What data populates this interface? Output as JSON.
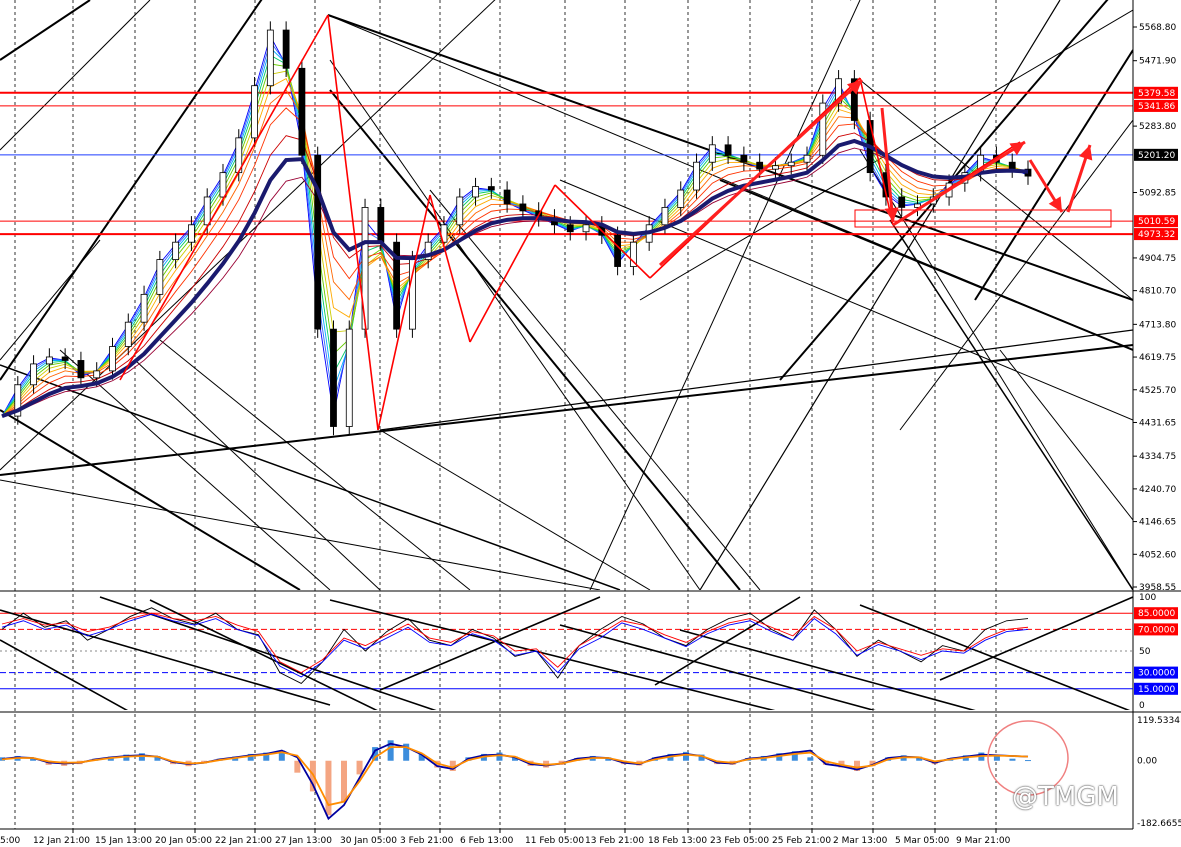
{
  "watermark": "@TMGM",
  "chart_data": [
    {
      "type": "line",
      "pane": "price",
      "y_ticks": [
        "5568.80",
        "5471.90",
        "5283.80",
        "5092.85",
        "4904.75",
        "4810.70",
        "4713.80",
        "4619.75",
        "4525.70",
        "4431.65",
        "4334.75",
        "4240.70",
        "4146.65",
        "4052.60",
        "3958.55"
      ],
      "ylim": [
        3958.55,
        5568.8
      ],
      "price_tags": [
        {
          "label": "5379.58",
          "value": 5379.58,
          "color": "#ff0000"
        },
        {
          "label": "5341.86",
          "value": 5341.86,
          "color": "#ff0000"
        },
        {
          "label": "5201.20",
          "value": 5201.2,
          "color": "#000000"
        },
        {
          "label": "5010.59",
          "value": 5010.59,
          "color": "#ff0000"
        },
        {
          "label": "4973.32",
          "value": 4973.32,
          "color": "#ff0000"
        }
      ],
      "x_labels": [
        "12 Jan 21:00",
        "15 Jan 13:00",
        "20 Jan 05:00",
        "22 Jan 21:00",
        "27 Jan 13:00",
        "30 Jan 05:00",
        "3 Feb 21:00",
        "6 Feb 13:00",
        "11 Feb 05:00",
        "13 Feb 21:00",
        "18 Feb 13:00",
        "23 Feb 05:00",
        "25 Feb 21:00",
        "2 Mar 13:00",
        "5 Mar 05:00",
        "9 Mar 21:00"
      ],
      "x_first_partial": "5:00",
      "close_series": [
        4450,
        4540,
        4600,
        4620,
        4610,
        4560,
        4580,
        4650,
        4720,
        4800,
        4900,
        4950,
        5000,
        5080,
        5150,
        5250,
        5400,
        5560,
        5450,
        5200,
        4700,
        4420,
        4700,
        5050,
        4950,
        4700,
        4900,
        4950,
        5000,
        5080,
        5110,
        5100,
        5060,
        5040,
        5020,
        5000,
        4980,
        5000,
        4970,
        4880,
        4950,
        5000,
        5050,
        5100,
        5180,
        5230,
        5200,
        5180,
        5160,
        5170,
        5180,
        5200,
        5350,
        5420,
        5300,
        5150,
        5080,
        5050,
        5060,
        5080,
        5120,
        5150,
        5200,
        5180,
        5160,
        5140
      ]
    },
    {
      "type": "line",
      "pane": "oscillator",
      "y_ticks": [
        "100",
        "85.0000",
        "70.0000",
        "50",
        "30.0000",
        "15.0000",
        "0"
      ],
      "levels": [
        85,
        70,
        50,
        30,
        15
      ],
      "ylim": [
        0,
        100
      ],
      "series": [
        {
          "color": "#000000",
          "values": [
            70,
            85,
            72,
            78,
            60,
            70,
            82,
            90,
            80,
            75,
            85,
            70,
            65,
            30,
            20,
            40,
            70,
            50,
            68,
            80,
            60,
            55,
            70,
            62,
            45,
            50,
            25,
            55,
            70,
            82,
            75,
            62,
            55,
            70,
            80,
            85,
            70,
            60,
            88,
            70,
            45,
            60,
            50,
            40,
            55,
            50,
            70,
            78,
            80
          ]
        },
        {
          "color": "#ff0000",
          "values": [
            75,
            80,
            74,
            76,
            68,
            72,
            80,
            85,
            80,
            78,
            82,
            74,
            68,
            40,
            30,
            42,
            62,
            55,
            65,
            75,
            62,
            58,
            68,
            64,
            50,
            52,
            35,
            55,
            66,
            78,
            74,
            65,
            58,
            68,
            76,
            80,
            72,
            64,
            82,
            70,
            50,
            58,
            52,
            46,
            52,
            50,
            62,
            70,
            72
          ]
        },
        {
          "color": "#0000ff",
          "values": [
            72,
            78,
            70,
            74,
            64,
            70,
            78,
            84,
            78,
            74,
            80,
            70,
            64,
            36,
            26,
            40,
            60,
            52,
            62,
            72,
            58,
            55,
            66,
            60,
            46,
            50,
            30,
            52,
            62,
            76,
            70,
            62,
            54,
            66,
            74,
            78,
            68,
            60,
            80,
            66,
            46,
            56,
            50,
            42,
            50,
            48,
            60,
            68,
            70
          ]
        }
      ]
    },
    {
      "type": "bar",
      "pane": "macd",
      "y_ticks": [
        "119.5334",
        "0.00",
        "-182.6655"
      ],
      "ylim": [
        -182.6655,
        119.5334
      ],
      "histogram": [
        10,
        14,
        8,
        -12,
        -15,
        -10,
        6,
        12,
        18,
        22,
        14,
        -10,
        -16,
        -8,
        6,
        12,
        20,
        24,
        30,
        -35,
        -90,
        -160,
        -120,
        -40,
        40,
        60,
        50,
        20,
        -20,
        -30,
        10,
        20,
        24,
        12,
        -15,
        -20,
        -12,
        8,
        14,
        10,
        -10,
        -14,
        10,
        20,
        26,
        18,
        -10,
        -12,
        8,
        14,
        22,
        28,
        10,
        -12,
        -20,
        -30,
        -16,
        10,
        16,
        12,
        -10,
        8,
        16,
        24,
        18,
        6,
        2
      ],
      "lines": [
        {
          "color": "#0000a0",
          "values": [
            5,
            10,
            8,
            -5,
            -8,
            -6,
            4,
            10,
            14,
            16,
            12,
            -4,
            -10,
            -6,
            4,
            10,
            16,
            20,
            30,
            10,
            -70,
            -170,
            -130,
            -50,
            30,
            50,
            40,
            18,
            -16,
            -24,
            6,
            16,
            18,
            10,
            -10,
            -14,
            -8,
            6,
            10,
            8,
            -6,
            -10,
            8,
            16,
            20,
            14,
            -6,
            -8,
            6,
            10,
            18,
            24,
            30,
            -10,
            -16,
            -26,
            -12,
            8,
            12,
            10,
            -6,
            6,
            12,
            18,
            16,
            14,
            12
          ]
        },
        {
          "color": "#ff8c00",
          "values": [
            4,
            8,
            8,
            -2,
            -6,
            -5,
            2,
            8,
            12,
            14,
            12,
            -2,
            -8,
            -6,
            2,
            8,
            14,
            18,
            25,
            15,
            -40,
            -130,
            -120,
            -60,
            10,
            40,
            40,
            22,
            -8,
            -20,
            2,
            12,
            16,
            12,
            -6,
            -12,
            -8,
            2,
            8,
            8,
            -2,
            -8,
            4,
            12,
            18,
            14,
            -2,
            -6,
            4,
            8,
            14,
            20,
            24,
            -2,
            -12,
            -20,
            -14,
            4,
            10,
            10,
            -2,
            4,
            10,
            14,
            15,
            14,
            12
          ]
        }
      ]
    }
  ]
}
